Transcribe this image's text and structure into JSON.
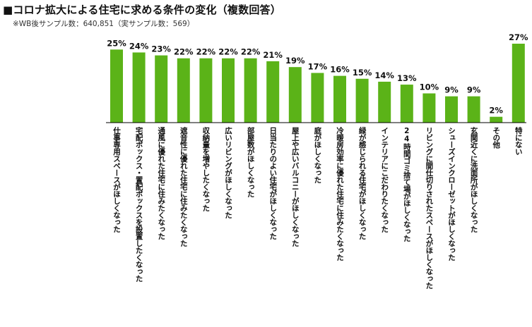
{
  "header": {
    "title": "■コロナ拡大による住宅に求める条件の変化（複数回答）",
    "subtitle": "※WB後サンプル数：640,851（実サンプル数：569）"
  },
  "colors": {
    "bar": "#5bb318",
    "baseline": "#000000"
  },
  "chart_data": {
    "type": "bar",
    "title": "■コロナ拡大による住宅に求める条件の変化（複数回答）",
    "unit": "%",
    "ylim": [
      0,
      27
    ],
    "grid": false,
    "categories": [
      "仕事専用スペースがほしくなった",
      "宅配ボックス・置配ボックスを設置したくなった",
      "通風に優れた住宅に住みたくなった",
      "遮音性に優れた住宅に住みたくなった",
      "収納量を増やしたくなった",
      "広いリビングがほしくなった",
      "部屋数がほしくなった",
      "日当たりのよい住宅がほしくなった",
      "屋上や広いバルコニーがほしくなった",
      "庭がほしくなった",
      "冷暖房効率に優れた住宅に住みたくなった",
      "緑が感じられる住宅がほしくなった",
      "インテリアにこだわりたくなった",
      "24時間ゴミ捨て場がほしくなった",
      "リビングに間仕切りされたスペースがほしくなった",
      "シューズインクローゼットがほしくなった",
      "玄関近くに洗面所がほしくなった",
      "その他",
      "特にない"
    ],
    "values": [
      25,
      24,
      23,
      22,
      22,
      22,
      22,
      21,
      19,
      17,
      16,
      15,
      14,
      13,
      10,
      9,
      9,
      2,
      27
    ],
    "value_labels": [
      "25%",
      "24%",
      "23%",
      "22%",
      "22%",
      "22%",
      "22%",
      "21%",
      "19%",
      "17%",
      "16%",
      "15%",
      "14%",
      "13%",
      "10%",
      "9%",
      "9%",
      "2%",
      "27%"
    ]
  }
}
